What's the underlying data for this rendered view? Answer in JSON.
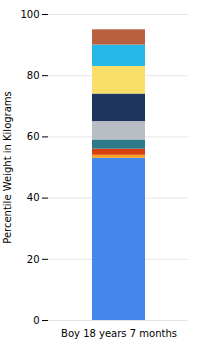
{
  "chart_data": {
    "type": "bar",
    "stacked": true,
    "categories": [
      "Boy 18 years 7 months"
    ],
    "series": [
      {
        "color": "#4488EE",
        "values": [
          53
        ]
      },
      {
        "color": "#F5A020",
        "values": [
          1
        ]
      },
      {
        "color": "#D94010",
        "values": [
          2
        ]
      },
      {
        "color": "#2A7A8A",
        "values": [
          3
        ]
      },
      {
        "color": "#B8BEC4",
        "values": [
          6
        ]
      },
      {
        "color": "#1E3560",
        "values": [
          9
        ]
      },
      {
        "color": "#FADE6A",
        "values": [
          9
        ]
      },
      {
        "color": "#28B8E8",
        "values": [
          7
        ]
      },
      {
        "color": "#B86040",
        "values": [
          5
        ]
      }
    ],
    "ylabel": "Percentile Weight in Kilograms",
    "ylim": [
      0,
      100
    ],
    "yticks": [
      0,
      20,
      40,
      60,
      80,
      100
    ],
    "grid": true
  }
}
